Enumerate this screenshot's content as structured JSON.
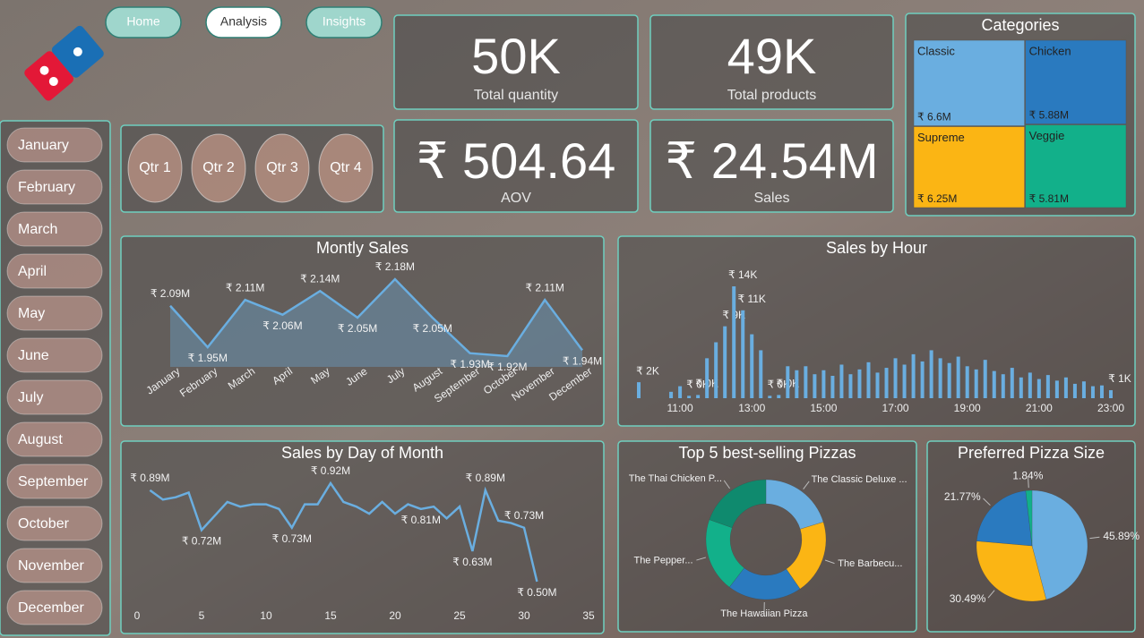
{
  "nav": [
    "Home",
    "Analysis",
    "Insights"
  ],
  "months": [
    "January",
    "February",
    "March",
    "April",
    "May",
    "June",
    "July",
    "August",
    "September",
    "October",
    "November",
    "December"
  ],
  "quarters": [
    "Qtr 1",
    "Qtr 2",
    "Qtr 3",
    "Qtr 4"
  ],
  "kpis": [
    {
      "value": "50K",
      "label": "Total quantity"
    },
    {
      "value": "49K",
      "label": "Total products"
    },
    {
      "value": "₹ 504.64",
      "label": "AOV"
    },
    {
      "value": "₹ 24.54M",
      "label": "Sales"
    }
  ],
  "chart_data": [
    {
      "type": "treemap",
      "title": "Categories",
      "categories": [
        "Classic",
        "Chicken",
        "Supreme",
        "Veggie"
      ],
      "values": [
        6.6,
        5.88,
        6.25,
        5.81
      ],
      "value_labels": [
        "₹ 6.6M",
        "₹ 5.88M",
        "₹ 6.25M",
        "₹ 5.81M"
      ],
      "colors": [
        "#6aaee0",
        "#2a7abf",
        "#fbb514",
        "#12b08a"
      ]
    },
    {
      "type": "line",
      "title": "Montly Sales",
      "categories": [
        "January",
        "February",
        "March",
        "April",
        "May",
        "June",
        "July",
        "August",
        "September",
        "October",
        "November",
        "December"
      ],
      "values": [
        2.09,
        1.95,
        2.11,
        2.06,
        2.14,
        2.05,
        2.18,
        2.05,
        1.93,
        1.92,
        2.11,
        1.94
      ],
      "value_labels": [
        "₹ 2.09M",
        "₹ 1.95M",
        "₹ 2.11M",
        "₹ 2.06M",
        "₹ 2.14M",
        "₹ 2.05M",
        "₹ 2.18M",
        "₹ 2.05M",
        "₹ 1.93M",
        "₹ 1.92M",
        "₹ 2.11M",
        "₹ 1.94M"
      ],
      "color": "#6aaee0",
      "area": true
    },
    {
      "type": "bar",
      "title": "Sales by Hour",
      "x": [
        9.85,
        10.75,
        11,
        11.25,
        11.5,
        11.75,
        12,
        12.25,
        12.5,
        12.75,
        13,
        13.25,
        13.5,
        13.75,
        14,
        14.25,
        14.5,
        14.75,
        15,
        15.25,
        15.5,
        15.75,
        16,
        16.25,
        16.5,
        16.75,
        17,
        17.25,
        17.5,
        17.75,
        18,
        18.25,
        18.5,
        18.75,
        19,
        19.25,
        19.5,
        19.75,
        20,
        20.25,
        20.5,
        20.75,
        21,
        21.25,
        21.5,
        21.75,
        22,
        22.25,
        22.5,
        22.75,
        23
      ],
      "values": [
        2,
        0.8,
        1.5,
        0.3,
        0.4,
        5,
        7,
        9,
        14,
        11,
        8,
        6,
        0.3,
        0.4,
        4,
        3.5,
        4,
        3,
        3.5,
        2.8,
        4.2,
        3,
        3.6,
        4.5,
        3.2,
        3.8,
        5,
        4.2,
        5.5,
        4.6,
        6,
        5,
        4.4,
        5.2,
        4,
        3.6,
        4.8,
        3.4,
        3,
        3.8,
        2.6,
        3.2,
        2.4,
        2.9,
        2.2,
        2.6,
        1.8,
        2.1,
        1.5,
        1.6,
        1
      ],
      "value_labels": [
        "₹ 2K",
        null,
        null,
        "₹ 0K",
        "₹ 0K",
        null,
        null,
        "₹ 9K",
        "₹ 14K",
        "₹ 11K",
        null,
        null,
        "₹ 0K",
        "₹ 0K",
        null,
        null,
        null,
        null,
        null,
        null,
        null,
        null,
        null,
        null,
        null,
        null,
        null,
        null,
        null,
        null,
        null,
        null,
        null,
        null,
        null,
        null,
        null,
        null,
        null,
        null,
        null,
        null,
        null,
        null,
        null,
        null,
        null,
        null,
        null,
        null,
        "₹ 1K"
      ],
      "color": "#6aaee0",
      "xlim": [
        9.7,
        23.2
      ],
      "xticks": [
        {
          "value": 11,
          "label": "11:00"
        },
        {
          "value": 13,
          "label": "13:00"
        },
        {
          "value": 15,
          "label": "15:00"
        },
        {
          "value": 17,
          "label": "17:00"
        },
        {
          "value": 19,
          "label": "19:00"
        },
        {
          "value": 21,
          "label": "21:00"
        },
        {
          "value": 23,
          "label": "23:00"
        }
      ]
    },
    {
      "type": "line",
      "title": "Sales by Day of Month",
      "x": [
        1,
        2,
        3,
        4,
        5,
        6,
        7,
        8,
        9,
        10,
        11,
        12,
        13,
        14,
        15,
        16,
        17,
        18,
        19,
        20,
        21,
        22,
        23,
        24,
        25,
        26,
        27,
        28,
        29,
        30,
        31
      ],
      "values": [
        0.89,
        0.85,
        0.86,
        0.88,
        0.72,
        0.78,
        0.84,
        0.82,
        0.83,
        0.83,
        0.81,
        0.73,
        0.83,
        0.83,
        0.92,
        0.84,
        0.82,
        0.79,
        0.84,
        0.79,
        0.83,
        0.81,
        0.82,
        0.77,
        0.82,
        0.63,
        0.89,
        0.76,
        0.75,
        0.73,
        0.5
      ],
      "value_labels": [
        "₹ 0.89M",
        null,
        null,
        null,
        "₹ 0.72M",
        null,
        null,
        null,
        null,
        null,
        null,
        "₹ 0.73M",
        null,
        null,
        "₹ 0.92M",
        null,
        null,
        null,
        null,
        null,
        null,
        "₹ 0.81M",
        null,
        null,
        null,
        "₹ 0.63M",
        "₹ 0.89M",
        null,
        null,
        "₹ 0.73M",
        "₹ 0.50M"
      ],
      "color": "#6aaee0",
      "xlim": [
        0,
        35
      ],
      "xticks": [
        0,
        5,
        10,
        15,
        20,
        25,
        30,
        35
      ]
    },
    {
      "type": "donut",
      "title": "Top 5 best-selling Pizzas",
      "categories": [
        "The Classic Deluxe ...",
        "The Barbecu...",
        "The Hawaiian Pizza",
        "The Pepper...",
        "The Thai Chicken P..."
      ],
      "values": [
        2453,
        2432,
        2422,
        2418,
        2371
      ],
      "colors": [
        "#6aaee0",
        "#fbb514",
        "#2a7abf",
        "#12b08a",
        "#0f8a6e"
      ]
    },
    {
      "type": "pie",
      "title": "Preferred Pizza Size",
      "values": [
        45.89,
        30.49,
        21.77,
        1.84
      ],
      "value_labels": [
        "45.89%",
        "30.49%",
        "21.77%",
        "1.84%"
      ],
      "colors": [
        "#6aaee0",
        "#fbb514",
        "#2a7abf",
        "#12b08a"
      ]
    }
  ]
}
